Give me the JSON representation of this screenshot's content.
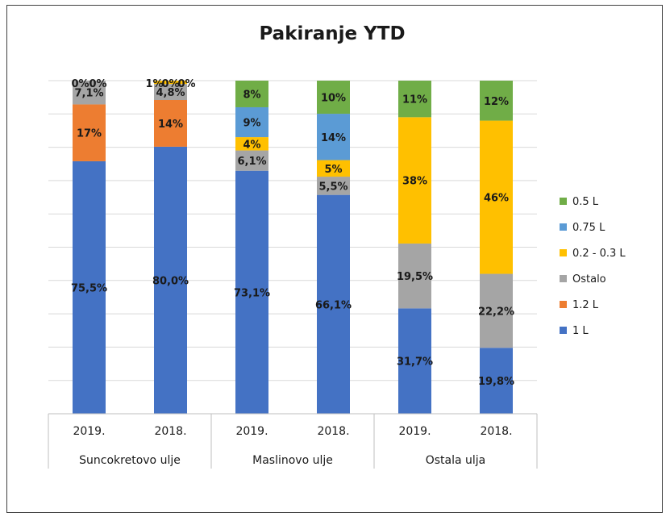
{
  "chart_data": {
    "type": "bar",
    "stacked": true,
    "normalized": true,
    "title": "Pakiranje YTD",
    "xlabel": "",
    "ylabel": "",
    "ylim": [
      0,
      100
    ],
    "grid": true,
    "legend_position": "right",
    "categories": [
      "2019.",
      "2018.",
      "2019.",
      "2018.",
      "2019.",
      "2018."
    ],
    "category_groups": [
      {
        "label": "Suncokretovo ulje",
        "span": 2
      },
      {
        "label": "Maslinovo ulje",
        "span": 2
      },
      {
        "label": "Ostala ulja",
        "span": 2
      }
    ],
    "series": [
      {
        "name": "1 L",
        "color": "#4472c4",
        "values": [
          75.5,
          80.0,
          73.1,
          66.1,
          31.7,
          19.8
        ],
        "labels": [
          "75,5%",
          "80,0%",
          "73,1%",
          "66,1%",
          "31,7%",
          "19,8%"
        ]
      },
      {
        "name": "1.2 L",
        "color": "#ed7d31",
        "values": [
          17,
          14,
          0,
          0,
          0,
          0
        ],
        "labels": [
          "17%",
          "14%",
          "",
          "",
          "",
          ""
        ]
      },
      {
        "name": "Ostalo",
        "color": "#a5a5a5",
        "values": [
          7.1,
          4.8,
          6.1,
          5.5,
          19.5,
          22.2
        ],
        "labels": [
          "7,1%",
          "4,8%",
          "6,1%",
          "5,5%",
          "19,5%",
          "22,2%"
        ]
      },
      {
        "name": "0.2 - 0.3 L",
        "color": "#ffc000",
        "values": [
          0,
          1,
          4,
          5,
          38,
          46
        ],
        "labels": [
          "",
          "1%",
          "4%",
          "5%",
          "38%",
          "46%"
        ]
      },
      {
        "name": "0.75 L",
        "color": "#5b9bd5",
        "values": [
          0,
          0,
          9,
          14,
          0,
          0
        ],
        "labels": [
          "0%",
          "0%",
          "9%",
          "14%",
          "",
          ""
        ]
      },
      {
        "name": "0.5 L",
        "color": "#70ad47",
        "values": [
          0,
          0,
          8,
          10,
          11,
          12
        ],
        "labels": [
          "0%",
          "0%",
          "8%",
          "10%",
          "11%",
          "12%"
        ]
      }
    ],
    "legend_order": [
      "0.5 L",
      "0.75 L",
      "0.2 - 0.3 L",
      "Ostalo",
      "1.2 L",
      "1 L"
    ]
  }
}
